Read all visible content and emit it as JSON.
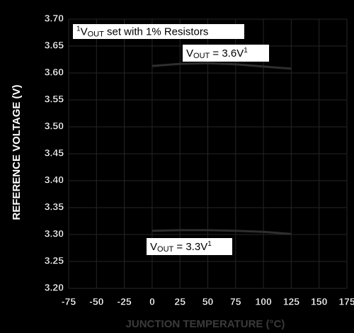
{
  "chart_data": {
    "type": "line",
    "ylabel": "REFERENCE VOLTAGE (V)",
    "xlabel": "JUNCTION TEMPERATURE (°C)",
    "x": [
      0,
      25,
      50,
      75,
      100,
      125
    ],
    "series": [
      {
        "color": "#2e2e2e",
        "values": [
          3.613,
          3.617,
          3.618,
          3.616,
          3.612,
          3.608
        ]
      },
      {
        "color": "#2e2e2e",
        "values": [
          3.307,
          3.308,
          3.308,
          3.307,
          3.305,
          3.301
        ]
      }
    ],
    "annotations": [
      {
        "sup": "1",
        "main": "V",
        "sub": "OUT",
        "rest": " set with 1% Resistors"
      },
      {
        "main": "V",
        "sub": "OUT",
        "rest": " = 3.6V",
        "sup": "1"
      },
      {
        "main": "V",
        "sub": "OUT",
        "rest": " = 3.3V",
        "sup": "1"
      }
    ],
    "xlim": [
      -75,
      175
    ],
    "xticks": [
      -75,
      -50,
      -25,
      0,
      25,
      50,
      75,
      100,
      125,
      150,
      175
    ],
    "ylim": [
      3.2,
      3.7
    ],
    "yticks": [
      {
        "value": 3.2,
        "label": "3.20"
      },
      {
        "value": 3.25,
        "label": "3.25"
      },
      {
        "value": 3.3,
        "label": "3.30"
      },
      {
        "value": 3.35,
        "label": "3.35"
      },
      {
        "value": 3.4,
        "label": "3.40"
      },
      {
        "value": 3.45,
        "label": "3.45"
      },
      {
        "value": 3.5,
        "label": "3.50"
      },
      {
        "value": 3.55,
        "label": "3.55"
      },
      {
        "value": 3.6,
        "label": "3.60"
      },
      {
        "value": 3.65,
        "label": "3.65"
      },
      {
        "value": 3.7,
        "label": "3.70"
      }
    ],
    "grid": true
  }
}
